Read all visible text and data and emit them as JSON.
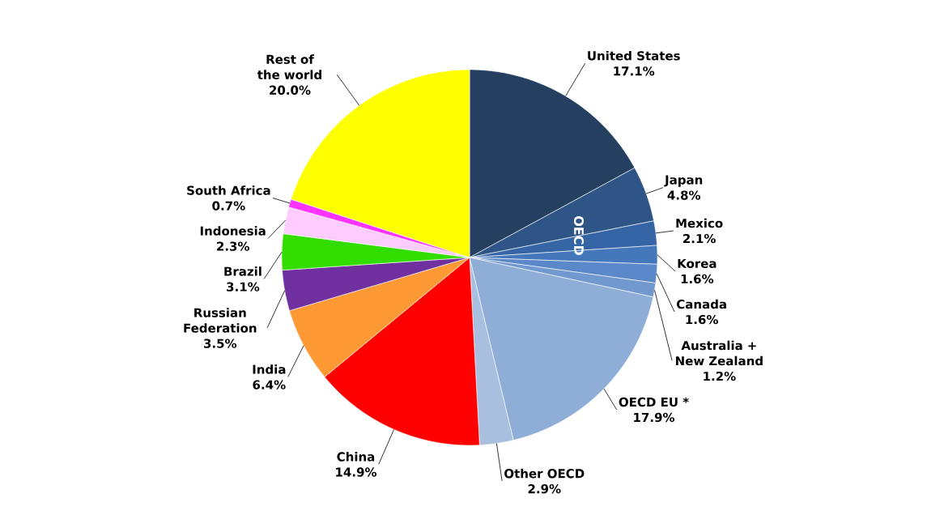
{
  "chart_data": {
    "type": "pie",
    "categories": [
      "United States",
      "Japan",
      "Mexico",
      "Korea",
      "Canada",
      "Australia + New Zealand",
      "OECD EU *",
      "Other OECD",
      "China",
      "India",
      "Russian Federation",
      "Brazil",
      "Indonesia",
      "South Africa",
      "Rest of the world"
    ],
    "values": [
      17.1,
      4.8,
      2.1,
      1.6,
      1.6,
      1.2,
      17.9,
      2.9,
      14.9,
      6.4,
      3.5,
      3.1,
      2.3,
      0.7,
      20.0
    ],
    "value_labels": [
      "17.1%",
      "4.8%",
      "2.1%",
      "1.6%",
      "1.6%",
      "1.2%",
      "17.9%",
      "2.9%",
      "14.9%",
      "6.4%",
      "3.5%",
      "3.1%",
      "2.3%",
      "0.7%",
      "20.0%"
    ],
    "colors": [
      "#243f60",
      "#2e5586",
      "#3565a5",
      "#4577bb",
      "#5a88c8",
      "#7198cf",
      "#8eaed8",
      "#a8bfe0",
      "#ff0000",
      "#ff9933",
      "#7030a0",
      "#33dd00",
      "#ffccff",
      "#ff33ff",
      "#ffff00"
    ],
    "annotations": [
      "OECD"
    ]
  }
}
